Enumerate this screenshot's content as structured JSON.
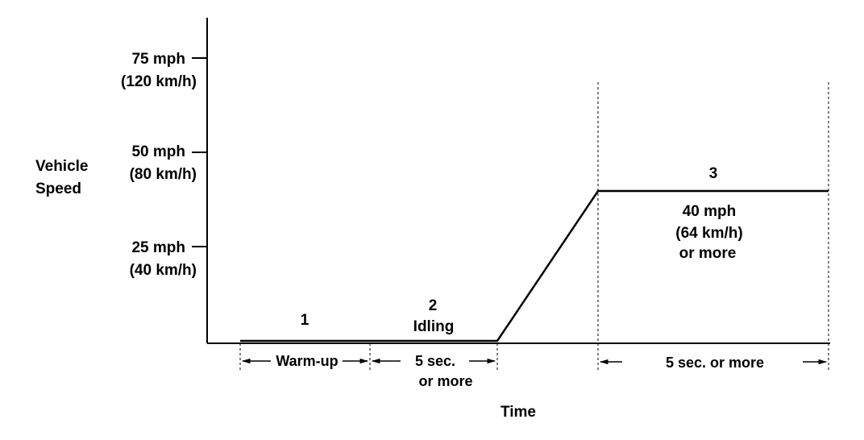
{
  "axes": {
    "y_label_line1": "Vehicle",
    "y_label_line2": "Speed",
    "x_label": "Time"
  },
  "y_ticks": [
    {
      "mph": "75 mph",
      "kmh": "(120 km/h)"
    },
    {
      "mph": "50 mph",
      "kmh": "(80 km/h)"
    },
    {
      "mph": "25 mph",
      "kmh": "(40 km/h)"
    }
  ],
  "phases": {
    "phase1": {
      "number": "1"
    },
    "phase2": {
      "number": "2",
      "name": "Idling"
    },
    "phase3": {
      "number": "3",
      "speed_line1": "40 mph",
      "speed_line2": "(64 km/h)",
      "speed_line3": "or more"
    }
  },
  "durations": {
    "warmup": "Warm-up",
    "idle_line1": "5 sec.",
    "idle_line2": "or  more",
    "cruise": "5 sec. or  more"
  }
}
